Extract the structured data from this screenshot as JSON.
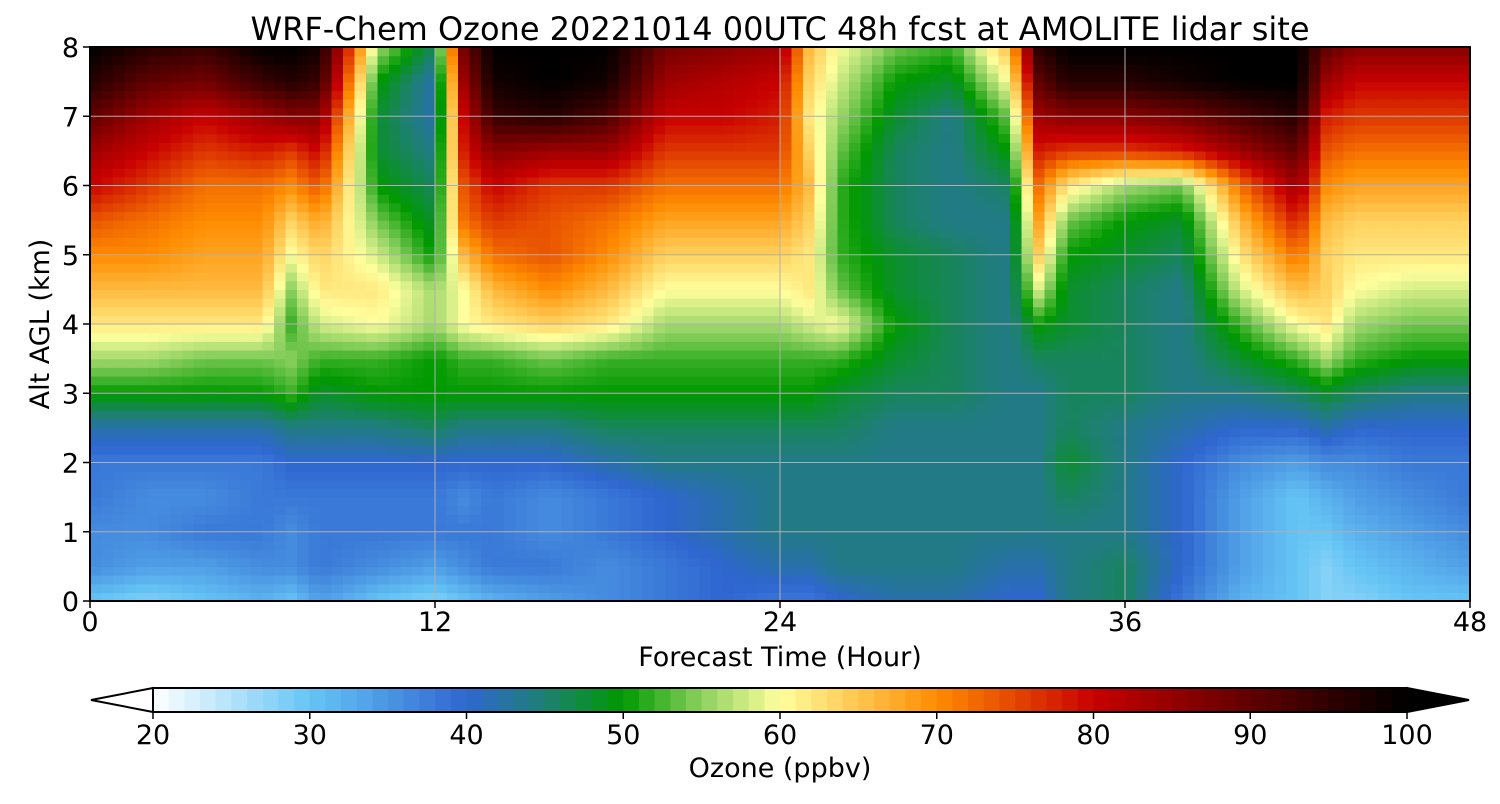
{
  "chart_data": {
    "type": "heatmap",
    "title": "WRF-Chem Ozone  20221014 00UTC 48h fcst at AMOLITE lidar site",
    "xlabel": "Forecast Time (Hour)",
    "ylabel": "Alt AGL (km)",
    "xlim": [
      0,
      48
    ],
    "ylim": [
      0,
      8
    ],
    "xticks": [
      0,
      12,
      24,
      36,
      48
    ],
    "yticks": [
      0,
      1,
      2,
      3,
      4,
      5,
      6,
      7,
      8
    ],
    "grid": true,
    "colorbar": {
      "label": "Ozone  (ppbv)",
      "min": 20,
      "max": 100,
      "ticks": [
        20,
        30,
        40,
        50,
        60,
        70,
        80,
        90,
        100
      ],
      "extend": "both",
      "orientation": "horizontal",
      "stops": [
        {
          "value": 20,
          "color": "#ffffff"
        },
        {
          "value": 30,
          "color": "#66c5f5"
        },
        {
          "value": 40,
          "color": "#2f66d0"
        },
        {
          "value": 45,
          "color": "#1e7f74"
        },
        {
          "value": 50,
          "color": "#009900"
        },
        {
          "value": 55,
          "color": "#8cd060"
        },
        {
          "value": 60,
          "color": "#ffff9e"
        },
        {
          "value": 70,
          "color": "#ff8c00"
        },
        {
          "value": 80,
          "color": "#c80000"
        },
        {
          "value": 90,
          "color": "#600000"
        },
        {
          "value": 100,
          "color": "#000000"
        }
      ]
    },
    "data_note_units": "ozone mixing ratio in ppbv; rows = altitude km, columns = forecast hour",
    "x": [
      0,
      2,
      4,
      6,
      7,
      8,
      10,
      12,
      13,
      14,
      16,
      18,
      20,
      22,
      24,
      25,
      26,
      28,
      30,
      32,
      33,
      34,
      36,
      38,
      40,
      42,
      43,
      44,
      46,
      48
    ],
    "y": [
      0,
      0.5,
      1,
      1.5,
      2,
      2.5,
      3,
      3.5,
      4,
      4.5,
      5,
      5.5,
      6,
      6.5,
      7,
      7.5,
      8
    ],
    "z": [
      [
        30,
        28,
        30,
        32,
        30,
        34,
        30,
        28,
        30,
        32,
        34,
        36,
        38,
        40,
        38,
        38,
        40,
        42,
        42,
        40,
        40,
        44,
        46,
        38,
        32,
        30,
        28,
        28,
        30,
        30
      ],
      [
        36,
        34,
        34,
        36,
        36,
        38,
        36,
        34,
        36,
        38,
        38,
        36,
        38,
        40,
        42,
        42,
        44,
        44,
        44,
        42,
        42,
        44,
        46,
        40,
        34,
        30,
        28,
        30,
        32,
        34
      ],
      [
        36,
        36,
        38,
        38,
        36,
        38,
        38,
        38,
        38,
        38,
        36,
        38,
        40,
        42,
        44,
        44,
        44,
        44,
        44,
        44,
        44,
        44,
        44,
        40,
        34,
        30,
        30,
        32,
        34,
        36
      ],
      [
        38,
        36,
        36,
        38,
        38,
        38,
        38,
        38,
        36,
        38,
        36,
        38,
        40,
        42,
        44,
        44,
        44,
        44,
        44,
        44,
        44,
        46,
        44,
        40,
        34,
        30,
        32,
        34,
        36,
        38
      ],
      [
        38,
        38,
        38,
        38,
        40,
        40,
        40,
        40,
        40,
        40,
        40,
        42,
        44,
        44,
        44,
        44,
        44,
        44,
        44,
        44,
        44,
        48,
        44,
        40,
        36,
        34,
        36,
        36,
        38,
        38
      ],
      [
        42,
        42,
        42,
        42,
        44,
        44,
        44,
        46,
        44,
        44,
        44,
        46,
        46,
        46,
        46,
        46,
        46,
        44,
        44,
        44,
        44,
        46,
        44,
        42,
        40,
        40,
        42,
        40,
        40,
        40
      ],
      [
        50,
        50,
        50,
        50,
        52,
        48,
        50,
        50,
        50,
        50,
        50,
        50,
        50,
        50,
        50,
        50,
        48,
        46,
        46,
        44,
        44,
        46,
        46,
        44,
        44,
        46,
        48,
        46,
        44,
        44
      ],
      [
        56,
        56,
        54,
        54,
        55,
        52,
        52,
        50,
        52,
        52,
        54,
        52,
        52,
        52,
        52,
        52,
        52,
        48,
        46,
        44,
        46,
        46,
        46,
        44,
        48,
        52,
        56,
        52,
        50,
        50
      ],
      [
        62,
        62,
        62,
        62,
        52,
        58,
        60,
        56,
        60,
        62,
        64,
        62,
        56,
        56,
        56,
        58,
        60,
        50,
        46,
        44,
        50,
        48,
        46,
        44,
        52,
        60,
        62,
        56,
        54,
        54
      ],
      [
        66,
        66,
        66,
        66,
        55,
        62,
        62,
        56,
        60,
        66,
        70,
        66,
        60,
        60,
        60,
        62,
        54,
        48,
        46,
        44,
        58,
        48,
        46,
        44,
        58,
        66,
        64,
        60,
        58,
        58
      ],
      [
        70,
        70,
        68,
        68,
        60,
        64,
        58,
        50,
        66,
        72,
        74,
        70,
        64,
        64,
        64,
        62,
        52,
        48,
        46,
        44,
        64,
        50,
        48,
        46,
        62,
        72,
        64,
        62,
        62,
        62
      ],
      [
        74,
        72,
        70,
        70,
        64,
        68,
        54,
        48,
        72,
        76,
        74,
        72,
        68,
        68,
        68,
        64,
        52,
        46,
        44,
        44,
        68,
        54,
        50,
        48,
        66,
        78,
        66,
        64,
        64,
        64
      ],
      [
        80,
        76,
        72,
        72,
        70,
        74,
        50,
        46,
        74,
        80,
        76,
        76,
        72,
        72,
        72,
        66,
        52,
        46,
        44,
        46,
        72,
        62,
        56,
        54,
        72,
        84,
        70,
        68,
        68,
        68
      ],
      [
        84,
        80,
        76,
        78,
        76,
        80,
        48,
        44,
        78,
        86,
        84,
        84,
        76,
        76,
        76,
        64,
        54,
        46,
        44,
        50,
        78,
        76,
        76,
        78,
        84,
        90,
        74,
        72,
        72,
        72
      ],
      [
        90,
        84,
        80,
        84,
        86,
        86,
        48,
        42,
        80,
        94,
        96,
        92,
        80,
        80,
        78,
        62,
        56,
        48,
        44,
        54,
        84,
        86,
        86,
        88,
        92,
        96,
        78,
        76,
        76,
        76
      ],
      [
        96,
        90,
        88,
        94,
        96,
        94,
        50,
        42,
        84,
        98,
        100,
        98,
        84,
        82,
        80,
        64,
        58,
        50,
        48,
        60,
        90,
        96,
        96,
        98,
        100,
        100,
        84,
        80,
        80,
        80
      ],
      [
        100,
        96,
        94,
        100,
        100,
        98,
        56,
        46,
        88,
        100,
        100,
        100,
        88,
        86,
        84,
        66,
        60,
        54,
        52,
        66,
        96,
        100,
        100,
        100,
        100,
        100,
        90,
        86,
        86,
        86
      ]
    ]
  }
}
